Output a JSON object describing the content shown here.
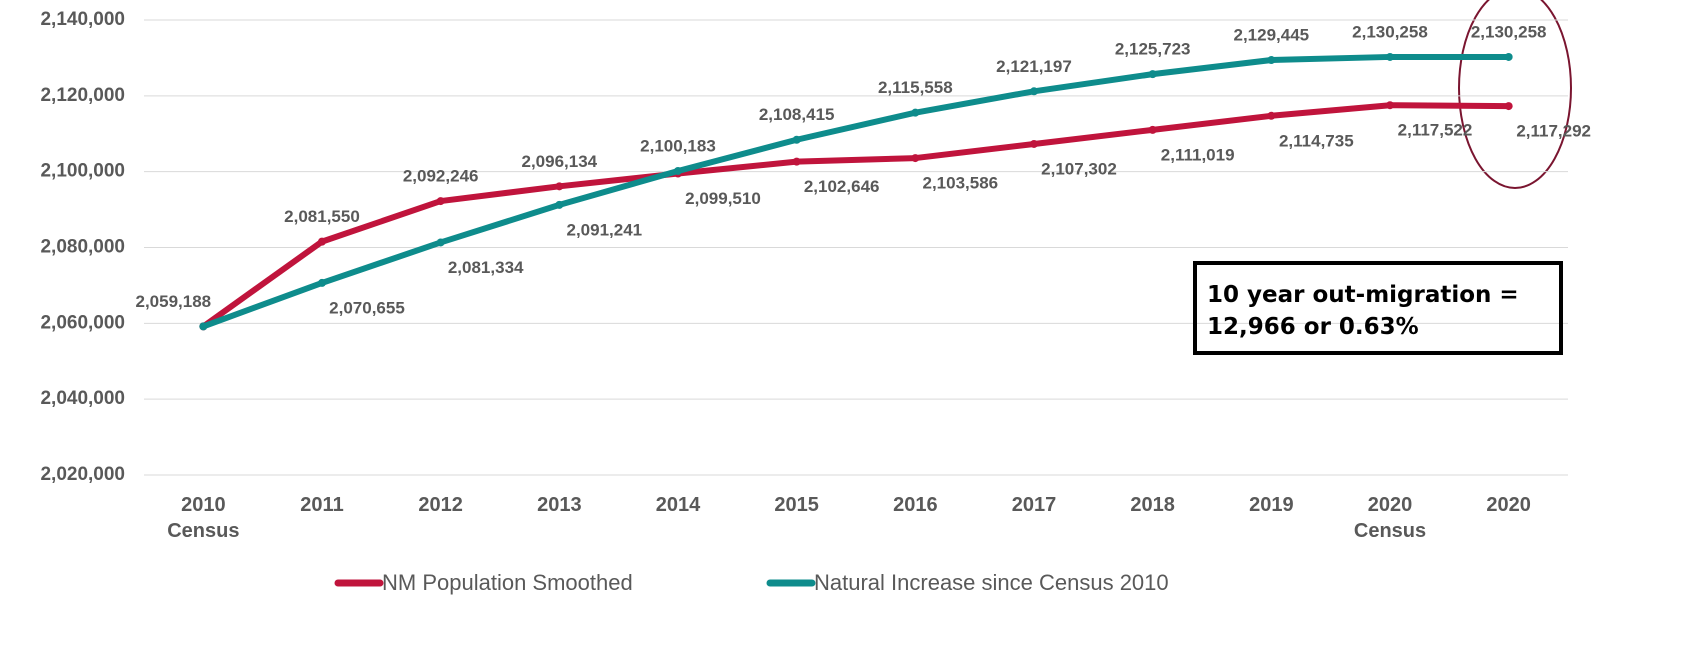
{
  "chart_data": {
    "type": "line",
    "categories": [
      "2010 Census",
      "2011",
      "2012",
      "2013",
      "2014",
      "2015",
      "2016",
      "2017",
      "2018",
      "2019",
      "2020 Census",
      "2020"
    ],
    "series": [
      {
        "name": "NM Population Smoothed",
        "color": "#c0143c",
        "values": [
          2059188,
          2081550,
          2092246,
          2096134,
          2099510,
          2102646,
          2103586,
          2107302,
          2111019,
          2114735,
          2117522,
          2117292
        ],
        "value_labels": [
          "2,059,188",
          "2,081,550",
          "2,092,246",
          "2,096,134",
          "2,099,510",
          "2,102,646",
          "2,103,586",
          "2,107,302",
          "2,111,019",
          "2,114,735",
          "2,117,522",
          "2,117,292"
        ]
      },
      {
        "name": "Natural Increase since Census 2010",
        "color": "#0e8c8c",
        "values": [
          2059188,
          2070655,
          2081334,
          2091241,
          2100183,
          2108415,
          2115558,
          2121197,
          2125723,
          2129445,
          2130258,
          2130258
        ],
        "value_labels": [
          null,
          "2,070,655",
          "2,081,334",
          "2,091,241",
          "2,100,183",
          "2,108,415",
          "2,115,558",
          "2,121,197",
          "2,125,723",
          "2,129,445",
          "2,130,258",
          "2,130,258"
        ]
      }
    ],
    "ylim": [
      2020000,
      2140000
    ],
    "yticks": [
      {
        "value": 2020000,
        "label": "2,020,000"
      },
      {
        "value": 2040000,
        "label": "2,040,000"
      },
      {
        "value": 2060000,
        "label": "2,060,000"
      },
      {
        "value": 2080000,
        "label": "2,080,000"
      },
      {
        "value": 2100000,
        "label": "2,100,000"
      },
      {
        "value": 2120000,
        "label": "2,120,000"
      },
      {
        "value": 2140000,
        "label": "2,140,000"
      }
    ],
    "grid": true,
    "legend": "bottom",
    "annotation": "10 year out-migration = 12,966 or 0.63%"
  }
}
